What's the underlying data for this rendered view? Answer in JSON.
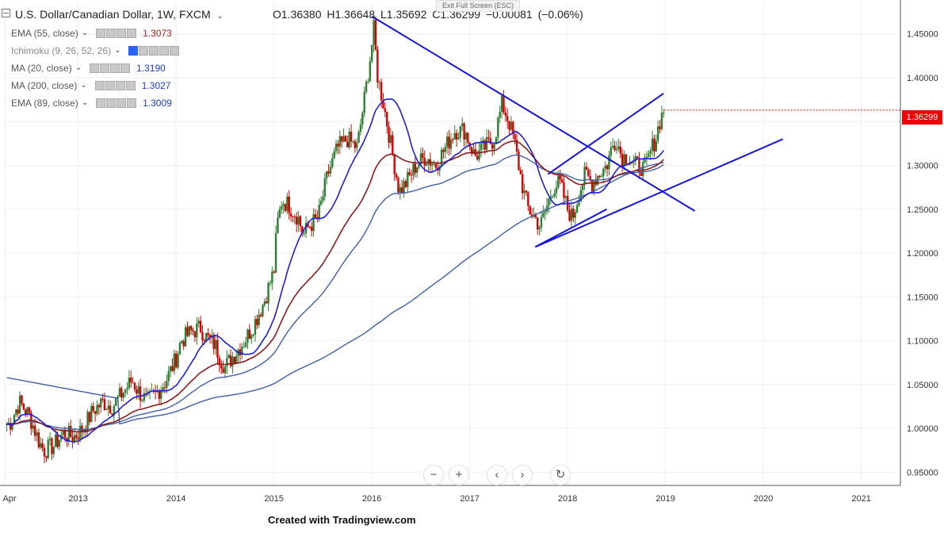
{
  "header": {
    "symbol": "U.S. Dollar/Canadian Dollar, 1W, FXCM",
    "open": "O1.36380",
    "high": "H1.36648",
    "low": "L1.35692",
    "close": "C1.36299",
    "change": "−0.00081 (−0.06%)",
    "exit_fullscreen": "Exit Full Screen (ESC)"
  },
  "indicators": [
    {
      "name": "EMA (55, close)",
      "value": "1.3073",
      "color": "#b71c1c"
    },
    {
      "name": "Ichimoku (9, 26, 52, 26)",
      "value": "",
      "color": "#888888"
    },
    {
      "name": "MA (20, close)",
      "value": "1.3190",
      "color": "#1a3dcc"
    },
    {
      "name": "MA (200, close)",
      "value": "1.3027",
      "color": "#1a3dcc"
    },
    {
      "name": "EMA (89, close)",
      "value": "1.3009",
      "color": "#1a3dcc"
    }
  ],
  "price_tag": "1.36299",
  "footer": "Created with Tradingview.com",
  "colors": {
    "up_candle": "#2e7d32",
    "down_candle": "#d50000",
    "ma20": "#1f1fd6",
    "ema55": "#8b1a1a",
    "ema89": "#3f5fa8",
    "ma200": "#3f5fa8",
    "trendline": "#1515d8",
    "grid": "#eeeeee"
  },
  "nav_icons": [
    "minus-icon",
    "plus-icon",
    "chevron-left-icon",
    "chevron-right-icon",
    "reset-icon"
  ],
  "chart_data": {
    "type": "candlestick",
    "y_ticks": [
      "0.95000",
      "1.00000",
      "1.05000",
      "1.10000",
      "1.15000",
      "1.20000",
      "1.25000",
      "1.30000",
      "1.35000",
      "1.40000",
      "1.45000"
    ],
    "y_range": [
      0.935,
      1.485
    ],
    "x_ticks": [
      "Apr",
      "2013",
      "2014",
      "2015",
      "2016",
      "2017",
      "2018",
      "2019",
      "2020",
      "2021"
    ],
    "x_range": [
      2012.25,
      2021.4
    ],
    "close_series": [
      [
        2012.3,
        1.005
      ],
      [
        2012.4,
        1.03
      ],
      [
        2012.5,
        1.015
      ],
      [
        2012.6,
        0.985
      ],
      [
        2012.65,
        0.975
      ],
      [
        2012.75,
        0.98
      ],
      [
        2012.85,
        0.995
      ],
      [
        2012.95,
        0.99
      ],
      [
        2013.05,
        1.0
      ],
      [
        2013.15,
        1.02
      ],
      [
        2013.25,
        1.03
      ],
      [
        2013.35,
        1.025
      ],
      [
        2013.45,
        1.04
      ],
      [
        2013.55,
        1.055
      ],
      [
        2013.6,
        1.045
      ],
      [
        2013.7,
        1.03
      ],
      [
        2013.8,
        1.04
      ],
      [
        2013.9,
        1.055
      ],
      [
        2014.0,
        1.08
      ],
      [
        2014.05,
        1.1
      ],
      [
        2014.15,
        1.11
      ],
      [
        2014.25,
        1.115
      ],
      [
        2014.3,
        1.105
      ],
      [
        2014.4,
        1.095
      ],
      [
        2014.45,
        1.08
      ],
      [
        2014.5,
        1.07
      ],
      [
        2014.6,
        1.085
      ],
      [
        2014.7,
        1.1
      ],
      [
        2014.8,
        1.12
      ],
      [
        2014.9,
        1.145
      ],
      [
        2015.0,
        1.18
      ],
      [
        2015.03,
        1.23
      ],
      [
        2015.08,
        1.26
      ],
      [
        2015.15,
        1.255
      ],
      [
        2015.25,
        1.24
      ],
      [
        2015.3,
        1.22
      ],
      [
        2015.35,
        1.23
      ],
      [
        2015.45,
        1.24
      ],
      [
        2015.55,
        1.29
      ],
      [
        2015.65,
        1.32
      ],
      [
        2015.75,
        1.33
      ],
      [
        2015.85,
        1.32
      ],
      [
        2015.93,
        1.38
      ],
      [
        2015.98,
        1.42
      ],
      [
        2016.02,
        1.455
      ],
      [
        2016.06,
        1.4
      ],
      [
        2016.12,
        1.37
      ],
      [
        2016.2,
        1.32
      ],
      [
        2016.28,
        1.27
      ],
      [
        2016.35,
        1.28
      ],
      [
        2016.45,
        1.3
      ],
      [
        2016.55,
        1.31
      ],
      [
        2016.65,
        1.3
      ],
      [
        2016.75,
        1.32
      ],
      [
        2016.85,
        1.34
      ],
      [
        2016.95,
        1.34
      ],
      [
        2017.05,
        1.31
      ],
      [
        2017.15,
        1.32
      ],
      [
        2017.25,
        1.33
      ],
      [
        2017.33,
        1.37
      ],
      [
        2017.4,
        1.35
      ],
      [
        2017.45,
        1.33
      ],
      [
        2017.5,
        1.3
      ],
      [
        2017.55,
        1.27
      ],
      [
        2017.6,
        1.25
      ],
      [
        2017.67,
        1.24
      ],
      [
        2017.72,
        1.23
      ],
      [
        2017.78,
        1.25
      ],
      [
        2017.85,
        1.275
      ],
      [
        2017.92,
        1.28
      ],
      [
        2018.0,
        1.25
      ],
      [
        2018.05,
        1.24
      ],
      [
        2018.12,
        1.27
      ],
      [
        2018.18,
        1.29
      ],
      [
        2018.25,
        1.28
      ],
      [
        2018.32,
        1.29
      ],
      [
        2018.4,
        1.3
      ],
      [
        2018.45,
        1.32
      ],
      [
        2018.5,
        1.33
      ],
      [
        2018.55,
        1.31
      ],
      [
        2018.62,
        1.31
      ],
      [
        2018.68,
        1.3
      ],
      [
        2018.74,
        1.3
      ],
      [
        2018.78,
        1.295
      ],
      [
        2018.82,
        1.305
      ],
      [
        2018.86,
        1.32
      ],
      [
        2018.9,
        1.33
      ],
      [
        2018.94,
        1.35
      ],
      [
        2018.98,
        1.363
      ]
    ],
    "trendlines": [
      {
        "from": [
          2016.0,
          1.47
        ],
        "to": [
          2019.3,
          1.248
        ]
      },
      {
        "from": [
          2017.67,
          1.207
        ],
        "to": [
          2020.2,
          1.33
        ]
      },
      {
        "from": [
          2017.8,
          1.29
        ],
        "to": [
          2018.98,
          1.382
        ]
      },
      {
        "from": [
          2017.67,
          1.207
        ],
        "to": [
          2018.4,
          1.25
        ]
      }
    ]
  }
}
